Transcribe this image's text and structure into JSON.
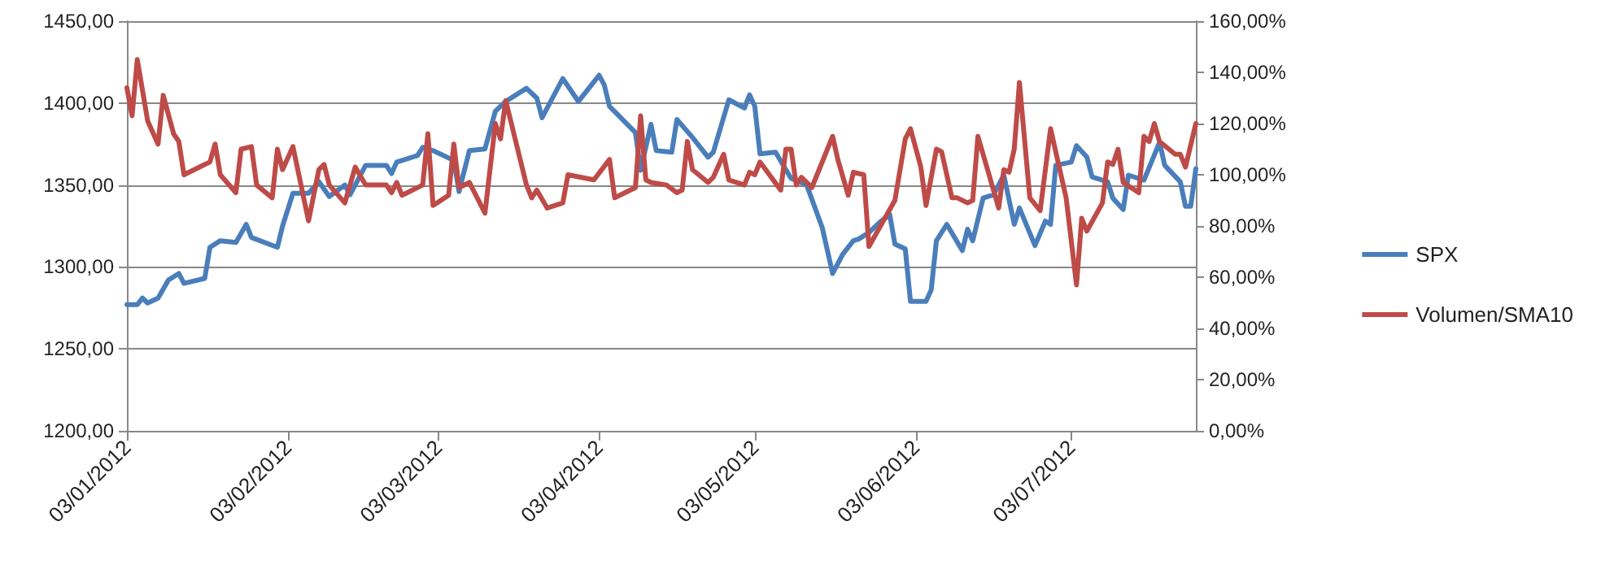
{
  "chart_data": {
    "type": "line",
    "legend": "right",
    "grid": "y",
    "marker": "none",
    "line_style": "solid",
    "xlim": [
      "2012-01-03",
      "2012-07-27"
    ],
    "xticks": [
      {
        "value": "2012-01-03",
        "label": "03/01/2012"
      },
      {
        "value": "2012-02-03",
        "label": "03/02/2012"
      },
      {
        "value": "2012-03-03",
        "label": "03/03/2012"
      },
      {
        "value": "2012-04-03",
        "label": "03/04/2012"
      },
      {
        "value": "2012-05-03",
        "label": "03/05/2012"
      },
      {
        "value": "2012-06-03",
        "label": "03/06/2012"
      },
      {
        "value": "2012-07-03",
        "label": "03/07/2012"
      }
    ],
    "ylim": [
      1200,
      1450
    ],
    "yticks": [
      {
        "value": 1200,
        "label": "1200,00"
      },
      {
        "value": 1250,
        "label": "1250,00"
      },
      {
        "value": 1300,
        "label": "1300,00"
      },
      {
        "value": 1350,
        "label": "1350,00"
      },
      {
        "value": 1400,
        "label": "1400,00"
      },
      {
        "value": 1450,
        "label": "1450,00"
      }
    ],
    "y2lim": [
      0,
      160
    ],
    "y2ticks": [
      {
        "value": 0,
        "label": "0,00%"
      },
      {
        "value": 20,
        "label": "20,00%"
      },
      {
        "value": 40,
        "label": "40,00%"
      },
      {
        "value": 60,
        "label": "60,00%"
      },
      {
        "value": 80,
        "label": "80,00%"
      },
      {
        "value": 100,
        "label": "100,00%"
      },
      {
        "value": 120,
        "label": "120,00%"
      },
      {
        "value": 140,
        "label": "140,00%"
      },
      {
        "value": 160,
        "label": "160,00%"
      }
    ],
    "series": [
      {
        "name": "SPX",
        "color": "#4a7ebb",
        "x": [
          "2012-01-03",
          "2012-01-05",
          "2012-01-06",
          "2012-01-07",
          "2012-01-09",
          "2012-01-11",
          "2012-01-13",
          "2012-01-14",
          "2012-01-18",
          "2012-01-19",
          "2012-01-21",
          "2012-01-24",
          "2012-01-26",
          "2012-01-27",
          "2012-02-01",
          "2012-02-02",
          "2012-02-04",
          "2012-02-07",
          "2012-02-09",
          "2012-02-11",
          "2012-02-14",
          "2012-02-15",
          "2012-02-18",
          "2012-02-22",
          "2012-02-23",
          "2012-02-24",
          "2012-02-28",
          "2012-02-29",
          "2012-03-02",
          "2012-03-06",
          "2012-03-07",
          "2012-03-09",
          "2012-03-12",
          "2012-03-14",
          "2012-03-16",
          "2012-03-20",
          "2012-03-22",
          "2012-03-23",
          "2012-03-27",
          "2012-03-30",
          "2012-04-03",
          "2012-04-04",
          "2012-04-05",
          "2012-04-10",
          "2012-04-11",
          "2012-04-13",
          "2012-04-14",
          "2012-04-17",
          "2012-04-18",
          "2012-04-21",
          "2012-04-24",
          "2012-04-25",
          "2012-04-28",
          "2012-05-01",
          "2012-05-02",
          "2012-05-03",
          "2012-05-04",
          "2012-05-07",
          "2012-05-10",
          "2012-05-13",
          "2012-05-16",
          "2012-05-18",
          "2012-05-20",
          "2012-05-22",
          "2012-05-23",
          "2012-05-25",
          "2012-05-27",
          "2012-05-29",
          "2012-05-30",
          "2012-06-01",
          "2012-06-02",
          "2012-06-05",
          "2012-06-06",
          "2012-06-07",
          "2012-06-09",
          "2012-06-12",
          "2012-06-13",
          "2012-06-14",
          "2012-06-16",
          "2012-06-18",
          "2012-06-20",
          "2012-06-22",
          "2012-06-23",
          "2012-06-26",
          "2012-06-28",
          "2012-06-29",
          "2012-06-30",
          "2012-07-03",
          "2012-07-04",
          "2012-07-06",
          "2012-07-07",
          "2012-07-10",
          "2012-07-11",
          "2012-07-13",
          "2012-07-14",
          "2012-07-17",
          "2012-07-20",
          "2012-07-21",
          "2012-07-24",
          "2012-07-25",
          "2012-07-26",
          "2012-07-27"
        ],
        "values": [
          1277,
          1277,
          1281,
          1278,
          1281,
          1292,
          1296,
          1290,
          1293,
          1312,
          1316,
          1315,
          1326,
          1318,
          1312,
          1325,
          1345,
          1345,
          1352,
          1343,
          1350,
          1344,
          1362,
          1362,
          1357,
          1364,
          1368,
          1373,
          1371,
          1365,
          1346,
          1371,
          1372,
          1395,
          1401,
          1409,
          1403,
          1391,
          1415,
          1401,
          1417,
          1411,
          1398,
          1382,
          1359,
          1387,
          1371,
          1370,
          1390,
          1379,
          1367,
          1370,
          1402,
          1397,
          1405,
          1398,
          1369,
          1370,
          1354,
          1350,
          1324,
          1296,
          1308,
          1316,
          1317,
          1321,
          1327,
          1332,
          1314,
          1311,
          1279,
          1279,
          1286,
          1316,
          1326,
          1310,
          1323,
          1316,
          1342,
          1344,
          1356,
          1326,
          1336,
          1313,
          1328,
          1326,
          1362,
          1364,
          1374,
          1367,
          1355,
          1352,
          1342,
          1335,
          1356,
          1353,
          1376,
          1362,
          1352,
          1337,
          1337,
          1360
        ]
      },
      {
        "name": "Volumen/SMA10",
        "color": "#be4b48",
        "axis": "y2",
        "x": [
          "2012-01-03",
          "2012-01-04",
          "2012-01-05",
          "2012-01-07",
          "2012-01-09",
          "2012-01-10",
          "2012-01-12",
          "2012-01-13",
          "2012-01-14",
          "2012-01-17",
          "2012-01-19",
          "2012-01-20",
          "2012-01-21",
          "2012-01-24",
          "2012-01-25",
          "2012-01-27",
          "2012-01-28",
          "2012-01-31",
          "2012-02-01",
          "2012-02-02",
          "2012-02-04",
          "2012-02-07",
          "2012-02-09",
          "2012-02-10",
          "2012-02-11",
          "2012-02-14",
          "2012-02-16",
          "2012-02-18",
          "2012-02-22",
          "2012-02-23",
          "2012-02-24",
          "2012-02-25",
          "2012-02-29",
          "2012-03-01",
          "2012-03-02",
          "2012-03-05",
          "2012-03-06",
          "2012-03-07",
          "2012-03-09",
          "2012-03-12",
          "2012-03-14",
          "2012-03-15",
          "2012-03-16",
          "2012-03-20",
          "2012-03-21",
          "2012-03-22",
          "2012-03-24",
          "2012-03-27",
          "2012-03-28",
          "2012-04-02",
          "2012-04-05",
          "2012-04-06",
          "2012-04-10",
          "2012-04-11",
          "2012-04-12",
          "2012-04-13",
          "2012-04-16",
          "2012-04-18",
          "2012-04-19",
          "2012-04-20",
          "2012-04-21",
          "2012-04-24",
          "2012-04-25",
          "2012-04-27",
          "2012-04-28",
          "2012-05-01",
          "2012-05-02",
          "2012-05-03",
          "2012-05-04",
          "2012-05-08",
          "2012-05-09",
          "2012-05-10",
          "2012-05-11",
          "2012-05-12",
          "2012-05-14",
          "2012-05-16",
          "2012-05-18",
          "2012-05-19",
          "2012-05-21",
          "2012-05-22",
          "2012-05-24",
          "2012-05-25",
          "2012-05-30",
          "2012-06-01",
          "2012-06-02",
          "2012-06-04",
          "2012-06-05",
          "2012-06-07",
          "2012-06-08",
          "2012-06-10",
          "2012-06-11",
          "2012-06-13",
          "2012-06-14",
          "2012-06-15",
          "2012-06-19",
          "2012-06-20",
          "2012-06-21",
          "2012-06-22",
          "2012-06-23",
          "2012-06-25",
          "2012-06-27",
          "2012-06-29",
          "2012-07-02",
          "2012-07-04",
          "2012-07-05",
          "2012-07-06",
          "2012-07-09",
          "2012-07-10",
          "2012-07-11",
          "2012-07-12",
          "2012-07-13",
          "2012-07-16",
          "2012-07-17",
          "2012-07-18",
          "2012-07-19",
          "2012-07-20",
          "2012-07-23",
          "2012-07-24",
          "2012-07-25",
          "2012-07-27"
        ],
        "values": [
          134,
          123,
          145,
          121,
          112,
          131,
          116,
          113,
          100,
          103,
          105,
          112,
          100,
          93,
          110,
          111,
          96,
          91,
          110,
          102,
          111,
          82,
          102,
          104,
          96,
          89,
          103,
          96,
          96,
          93,
          97,
          92,
          96,
          116,
          88,
          92,
          112,
          95,
          97,
          85,
          120,
          114,
          129,
          96,
          91,
          94,
          87,
          89,
          100,
          98,
          106,
          91,
          95,
          123,
          98,
          97,
          96,
          93,
          94,
          113,
          102,
          97,
          99,
          108,
          98,
          96,
          101,
          100,
          105,
          94,
          110,
          110,
          96,
          99,
          95,
          105,
          115,
          106,
          92,
          101,
          100,
          72,
          90,
          114,
          118,
          103,
          88,
          110,
          109,
          91,
          91,
          89,
          90,
          115,
          87,
          102,
          101,
          110,
          136,
          91,
          86,
          118,
          91,
          57,
          83,
          78,
          89,
          105,
          104,
          110,
          97,
          93,
          115,
          113,
          120,
          113,
          108,
          108,
          103,
          120
        ]
      }
    ]
  }
}
